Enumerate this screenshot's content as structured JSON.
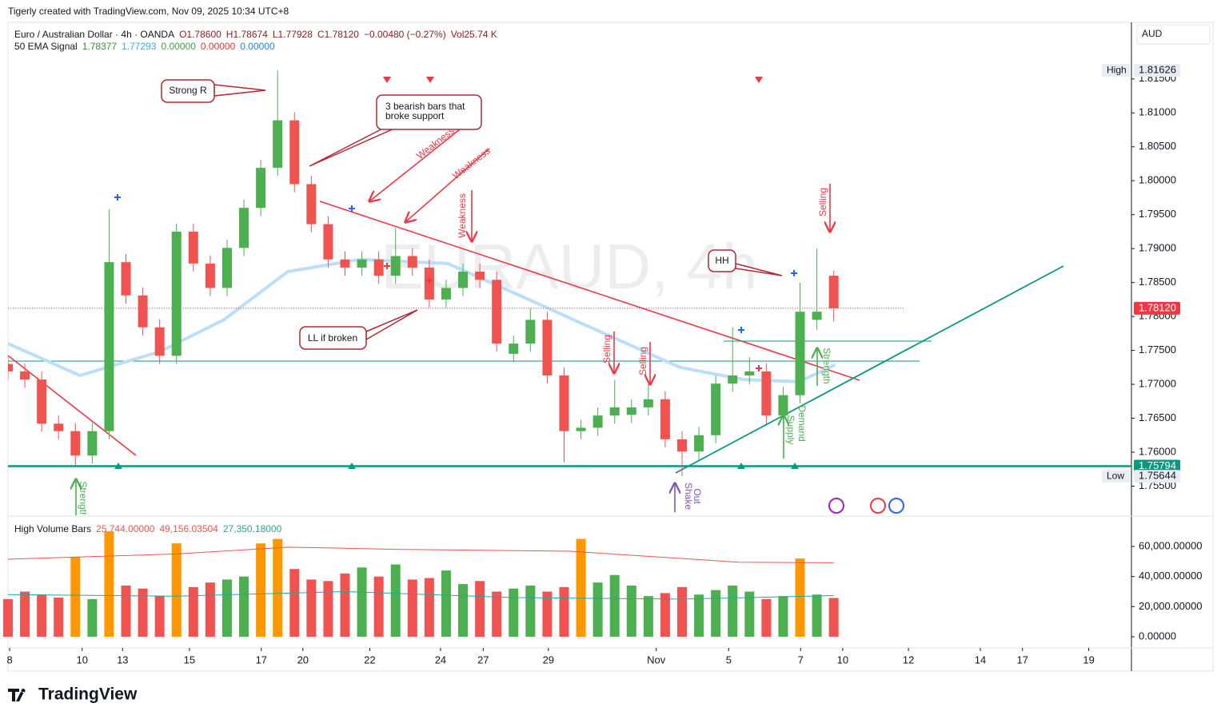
{
  "caption": "Tigerly created with TradingView.com, Nov 09, 2025 10:34 UTC+8",
  "brand": "TradingView",
  "currency": "AUD",
  "chart_data": [
    {
      "type": "candlestick",
      "title": "Euro / Australian Dollar · 4h · OANDA",
      "quote": [
        "O1.78600",
        "H1.78674",
        "L1.77928",
        "C1.78120",
        "−0.00480 (−0.27%)",
        "Vol25.74 K"
      ],
      "indicator": {
        "name": "50 EMA Signal",
        "values": [
          {
            "text": "1.78377",
            "color": "#388e3c"
          },
          {
            "text": "1.77293",
            "color": "#42a5f5"
          },
          {
            "text": "0.00000",
            "color": "#43a047"
          },
          {
            "text": "0.00000",
            "color": "#e53935"
          },
          {
            "text": "0.00000",
            "color": "#1e88e5"
          }
        ]
      },
      "watermark": "EURAUD, 4h",
      "up_color": "#4caf50",
      "down_color": "#f05350",
      "x": [
        0,
        3,
        6,
        9,
        12,
        15,
        18,
        21,
        24,
        27,
        30,
        33,
        36,
        39,
        42,
        45,
        48,
        51,
        54,
        57,
        60,
        63,
        66,
        69,
        72,
        75,
        78,
        81,
        84,
        87,
        90,
        93,
        96,
        99,
        102,
        105,
        108,
        111,
        114,
        117,
        120,
        123,
        126,
        129,
        132,
        135,
        138,
        141,
        144,
        147
      ],
      "open": [
        1.773,
        1.7719,
        1.7707,
        1.7642,
        1.7631,
        1.7595,
        1.7631,
        1.788,
        1.7831,
        1.7784,
        1.7742,
        1.7925,
        1.7878,
        1.7842,
        1.7901,
        1.796,
        1.8019,
        1.8089,
        1.7995,
        1.7936,
        1.7884,
        1.7872,
        1.7884,
        1.786,
        1.7889,
        1.7872,
        1.7825,
        1.7842,
        1.7866,
        1.7854,
        1.7745,
        1.776,
        1.7795,
        1.7713,
        1.7631,
        1.7636,
        1.7654,
        1.7655,
        1.7666,
        1.7678,
        1.7619,
        1.7601,
        1.7625,
        1.7701,
        1.7713,
        1.7719,
        1.7654,
        1.7684,
        1.7795,
        1.786
      ],
      "high": [
        1.7742,
        1.7731,
        1.7719,
        1.7654,
        1.7643,
        1.7643,
        1.7958,
        1.7892,
        1.7843,
        1.7796,
        1.7937,
        1.7937,
        1.789,
        1.7913,
        1.7972,
        1.8031,
        1.81626,
        1.8101,
        1.8007,
        1.7948,
        1.7896,
        1.7896,
        1.7896,
        1.793,
        1.7901,
        1.7884,
        1.7854,
        1.7878,
        1.7878,
        1.7866,
        1.7772,
        1.7812,
        1.7807,
        1.7725,
        1.7648,
        1.7666,
        1.7706,
        1.7678,
        1.77,
        1.769,
        1.7631,
        1.7637,
        1.7713,
        1.7784,
        1.774,
        1.7731,
        1.7696,
        1.785,
        1.79,
        1.78674
      ],
      "low": [
        1.7707,
        1.7695,
        1.763,
        1.7619,
        1.758,
        1.7583,
        1.7619,
        1.7819,
        1.7772,
        1.773,
        1.773,
        1.7866,
        1.783,
        1.783,
        1.7889,
        1.7948,
        1.8007,
        1.7983,
        1.7924,
        1.7872,
        1.786,
        1.786,
        1.7848,
        1.7848,
        1.786,
        1.7813,
        1.7813,
        1.783,
        1.7842,
        1.7748,
        1.7733,
        1.7748,
        1.7701,
        1.7585,
        1.7619,
        1.7624,
        1.7642,
        1.7643,
        1.7654,
        1.7607,
        1.75644,
        1.7589,
        1.7613,
        1.7689,
        1.77,
        1.7642,
        1.7642,
        1.7672,
        1.778,
        1.77928
      ],
      "close": [
        1.7719,
        1.7707,
        1.7642,
        1.7631,
        1.7595,
        1.7631,
        1.788,
        1.7831,
        1.7784,
        1.7742,
        1.7925,
        1.7878,
        1.7842,
        1.7901,
        1.796,
        1.8019,
        1.8089,
        1.7995,
        1.7936,
        1.7884,
        1.7872,
        1.7884,
        1.786,
        1.7889,
        1.7872,
        1.7825,
        1.7842,
        1.7866,
        1.7854,
        1.776,
        1.776,
        1.7795,
        1.7713,
        1.7631,
        1.7636,
        1.7654,
        1.7666,
        1.7666,
        1.7678,
        1.7619,
        1.7601,
        1.7625,
        1.7701,
        1.7713,
        1.7719,
        1.7654,
        1.7684,
        1.7807,
        1.7807,
        1.7812
      ],
      "ema": {
        "color": "#bbdefb",
        "x": [
          0,
          12.8,
          27,
          38.4,
          49.8,
          62.6,
          78.3,
          91.1,
          105.3,
          119.6,
          131,
          140.9,
          147.3
        ],
        "values": [
          1.776,
          1.7713,
          1.7748,
          1.7795,
          1.7866,
          1.7884,
          1.7878,
          1.7831,
          1.7778,
          1.7725,
          1.7707,
          1.7704,
          1.7729
        ]
      },
      "xlim": [
        0,
        200
      ],
      "xticks": [
        {
          "value": 0.3,
          "label": "8"
        },
        {
          "value": 13.2,
          "label": "10"
        },
        {
          "value": 20.4,
          "label": "13"
        },
        {
          "value": 32.3,
          "label": "15"
        },
        {
          "value": 45.1,
          "label": "17"
        },
        {
          "value": 52.5,
          "label": "20"
        },
        {
          "value": 64.4,
          "label": "22"
        },
        {
          "value": 77.0,
          "label": "24"
        },
        {
          "value": 84.6,
          "label": "27"
        },
        {
          "value": 96.2,
          "label": "29"
        },
        {
          "value": 115.4,
          "label": "Nov"
        },
        {
          "value": 128.3,
          "label": "5"
        },
        {
          "value": 141.1,
          "label": "7"
        },
        {
          "value": 148.6,
          "label": "10"
        },
        {
          "value": 160.3,
          "label": "12"
        },
        {
          "value": 173.1,
          "label": "14"
        },
        {
          "value": 180.6,
          "label": "17"
        },
        {
          "value": 192.4,
          "label": "19"
        }
      ],
      "ylim": [
        1.7507,
        1.8231
      ],
      "yticks": [
        {
          "value": 1.815,
          "label": "1.81500"
        },
        {
          "value": 1.81,
          "label": "1.81000"
        },
        {
          "value": 1.805,
          "label": "1.80500"
        },
        {
          "value": 1.8,
          "label": "1.80000"
        },
        {
          "value": 1.795,
          "label": "1.79500"
        },
        {
          "value": 1.79,
          "label": "1.79000"
        },
        {
          "value": 1.785,
          "label": "1.78500"
        },
        {
          "value": 1.78,
          "label": "1.78000"
        },
        {
          "value": 1.775,
          "label": "1.77500"
        },
        {
          "value": 1.77,
          "label": "1.77000"
        },
        {
          "value": 1.765,
          "label": "1.76500"
        },
        {
          "value": 1.76,
          "label": "1.76000"
        },
        {
          "value": 1.755,
          "label": "1.75500"
        }
      ],
      "levels": [
        {
          "value": 1.7812,
          "label": "1.78120",
          "color": "#f23645"
        },
        {
          "value": 1.75794,
          "label": "1.75794",
          "color": "#089981"
        }
      ],
      "extremes": [
        {
          "name": "High",
          "value": 1.81626,
          "label": "1.81626"
        },
        {
          "name": "Low",
          "value": 1.75644,
          "label": "1.75644"
        }
      ],
      "annotations": [
        {
          "lines": [
            "Strong R"
          ]
        },
        {
          "lines": [
            "3 bearish bars that",
            "broke support"
          ]
        },
        {
          "lines": [
            "Weakness"
          ]
        },
        {
          "lines": [
            "Weakness"
          ]
        },
        {
          "lines": [
            "Weakness"
          ]
        },
        {
          "lines": [
            "Selling"
          ]
        },
        {
          "lines": [
            "Selling"
          ]
        },
        {
          "lines": [
            "Selling"
          ]
        },
        {
          "lines": [
            "LL if broken"
          ]
        },
        {
          "lines": [
            "HH"
          ]
        },
        {
          "lines": [
            "Strength"
          ]
        },
        {
          "lines": [
            "Strength"
          ]
        },
        {
          "lines": [
            "Demand"
          ]
        },
        {
          "lines": [
            "Supply"
          ]
        },
        {
          "lines": [
            "Shake",
            "Out"
          ]
        }
      ]
    },
    {
      "type": "bar",
      "title": "High Volume Bars",
      "legend_values": [
        {
          "text": "25,744.00000",
          "color": "#f05350"
        },
        {
          "text": "49,156.03504",
          "color": "#f05350"
        },
        {
          "text": "27,350.18000",
          "color": "#26a69a"
        }
      ],
      "high_volume_color": "#ff9800",
      "x": [
        0,
        3,
        6,
        9,
        12,
        15,
        18,
        21,
        24,
        27,
        30,
        33,
        36,
        39,
        42,
        45,
        48,
        51,
        54,
        57,
        60,
        63,
        66,
        69,
        72,
        75,
        78,
        81,
        84,
        87,
        90,
        93,
        96,
        99,
        102,
        105,
        108,
        111,
        114,
        117,
        120,
        123,
        126,
        129,
        132,
        135,
        138,
        141,
        144,
        147
      ],
      "values": [
        25000,
        30000,
        28000,
        26000,
        53000,
        25000,
        70000,
        34000,
        32000,
        27000,
        62000,
        33000,
        36000,
        38000,
        40000,
        62000,
        65000,
        45000,
        38000,
        37000,
        42000,
        46000,
        40000,
        48000,
        38000,
        39000,
        44000,
        35000,
        37000,
        30000,
        32000,
        34000,
        30000,
        33000,
        65000,
        36000,
        41000,
        34000,
        27000,
        29000,
        33000,
        28000,
        31000,
        34000,
        30000,
        25000,
        27000,
        52000,
        28000,
        25744
      ],
      "series": [
        {
          "color": "#f05350",
          "x": [
            0,
            30,
            50,
            70,
            100,
            130,
            147
          ],
          "values": [
            51500,
            55000,
            59500,
            58000,
            56800,
            49500,
            49156.03504
          ]
        },
        {
          "color": "#26a69a",
          "x": [
            0,
            30,
            60,
            90,
            120,
            147
          ],
          "values": [
            28000,
            27000,
            30000,
            26000,
            25000,
            27350.18
          ]
        }
      ],
      "ylim": [
        -5800,
        78000
      ],
      "yticks": [
        {
          "value": 60000,
          "label": "60,000.00000"
        },
        {
          "value": 40000,
          "label": "40,000.00000"
        },
        {
          "value": 20000,
          "label": "20,000.00000"
        },
        {
          "value": 0,
          "label": "0.00000"
        }
      ]
    }
  ]
}
